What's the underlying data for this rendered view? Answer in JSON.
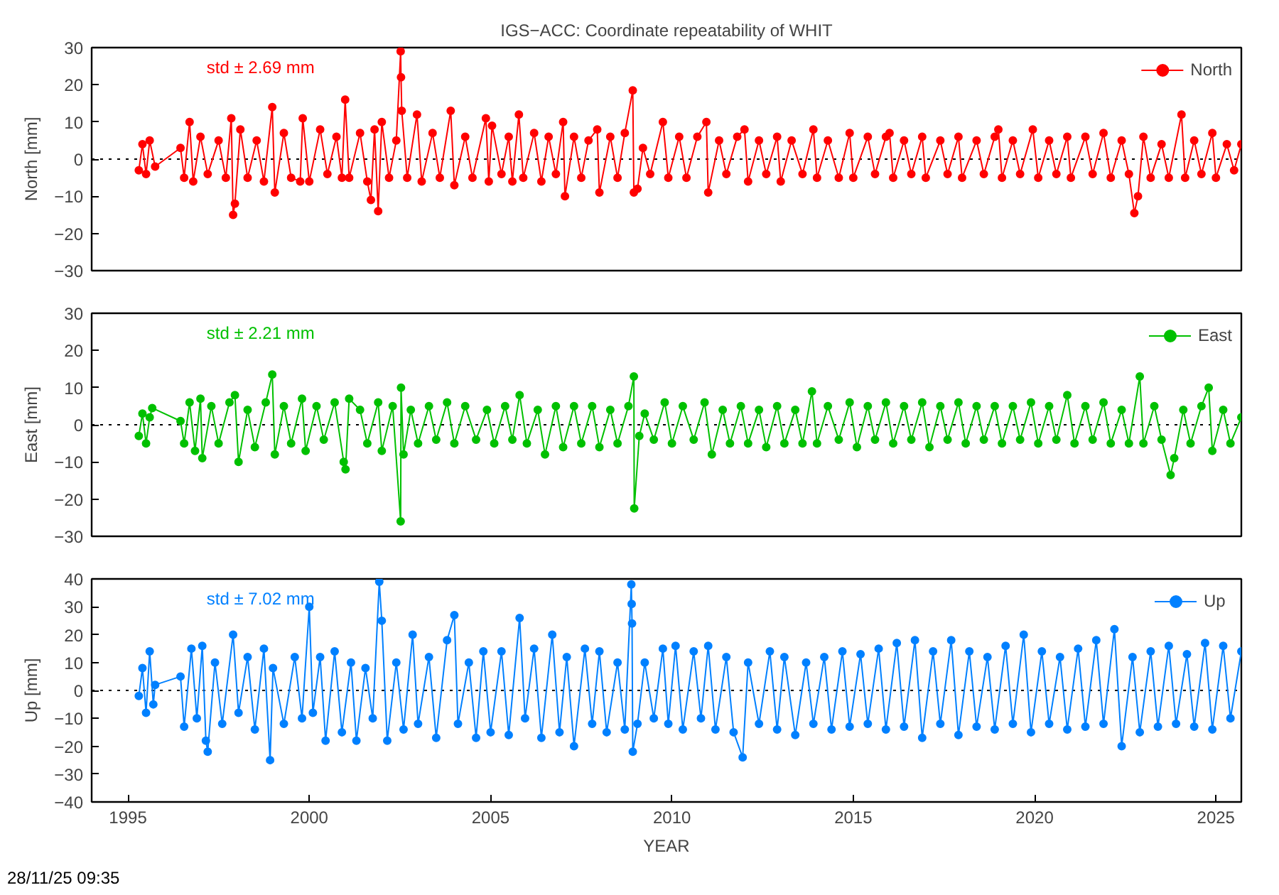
{
  "chart_data": [
    {
      "type": "line",
      "title": "IGS−ACC: Coordinate repeatability of WHIT",
      "ylabel": "North [mm]",
      "xlim": [
        1994,
        2025.7
      ],
      "ylim": [
        -30,
        30
      ],
      "yticks": [
        -30,
        -20,
        -10,
        0,
        10,
        20,
        30
      ],
      "tick_labels": "y",
      "grid": false,
      "legend": "top right",
      "marker": "circle",
      "line_style": "solid",
      "annotations": [
        "std ± 2.69 mm"
      ],
      "ref_lines": [
        {
          "axis": "y",
          "value": 0,
          "line_style": "dotted",
          "color": "#000000"
        }
      ],
      "x": [
        1995.3,
        1995.4,
        1995.5,
        1995.6,
        1995.75,
        1996.45,
        1996.55,
        1996.7,
        1996.8,
        1997.0,
        1997.2,
        1997.5,
        1997.7,
        1997.85,
        1997.9,
        1997.95,
        1998.1,
        1998.3,
        1998.55,
        1998.75,
        1998.98,
        1999.05,
        1999.3,
        1999.5,
        1999.75,
        1999.82,
        2000.0,
        2000.3,
        2000.5,
        2000.75,
        2000.9,
        2000.99,
        2001.1,
        2001.4,
        2001.6,
        2001.7,
        2001.8,
        2001.9,
        2002.0,
        2002.2,
        2002.4,
        2002.52,
        2002.53,
        2002.55,
        2002.7,
        2002.97,
        2003.1,
        2003.4,
        2003.6,
        2003.9,
        2004.0,
        2004.3,
        2004.5,
        2004.87,
        2004.95,
        2005.04,
        2005.3,
        2005.5,
        2005.6,
        2005.78,
        2005.9,
        2006.2,
        2006.4,
        2006.6,
        2006.8,
        2007.0,
        2007.05,
        2007.3,
        2007.5,
        2007.7,
        2007.94,
        2008.0,
        2008.3,
        2008.5,
        2008.7,
        2008.92,
        2008.95,
        2009.05,
        2009.2,
        2009.4,
        2009.75,
        2009.9,
        2010.2,
        2010.4,
        2010.7,
        2010.95,
        2011.0,
        2011.3,
        2011.5,
        2011.8,
        2012.0,
        2012.1,
        2012.4,
        2012.6,
        2012.9,
        2013.0,
        2013.3,
        2013.6,
        2013.9,
        2014.0,
        2014.3,
        2014.6,
        2014.9,
        2015.0,
        2015.4,
        2015.6,
        2015.9,
        2016.0,
        2016.1,
        2016.4,
        2016.6,
        2016.9,
        2017.0,
        2017.4,
        2017.6,
        2017.9,
        2018.0,
        2018.4,
        2018.6,
        2018.9,
        2019.0,
        2019.1,
        2019.4,
        2019.6,
        2019.95,
        2020.1,
        2020.4,
        2020.6,
        2020.9,
        2021.0,
        2021.4,
        2021.6,
        2021.9,
        2022.1,
        2022.4,
        2022.6,
        2022.75,
        2022.85,
        2023.0,
        2023.2,
        2023.5,
        2023.7,
        2024.05,
        2024.15,
        2024.4,
        2024.6,
        2024.9,
        2025.0,
        2025.3,
        2025.5,
        2025.7
      ],
      "series": [
        {
          "name": "North",
          "color": "#ff0000",
          "values": [
            -3,
            4,
            -4,
            5,
            -2,
            3,
            -5,
            10,
            -6,
            6,
            -4,
            5,
            -5,
            11,
            -15,
            -12,
            8,
            -5,
            5,
            -6,
            14,
            -9,
            7,
            -5,
            -6,
            11,
            -6,
            8,
            -4,
            6,
            -5,
            16,
            -5,
            7,
            -6,
            -11,
            8,
            -14,
            10,
            -5,
            5,
            29,
            22,
            13,
            -5,
            12,
            -6,
            7,
            -5,
            13,
            -7,
            6,
            -5,
            11,
            -6,
            9,
            -4,
            6,
            -6,
            12,
            -5,
            7,
            -6,
            6,
            -4,
            10,
            -10,
            6,
            -5,
            5,
            8,
            -9,
            6,
            -5,
            7,
            18.5,
            -9,
            -8,
            3,
            -4,
            10,
            -5,
            6,
            -5,
            6,
            10,
            -9,
            5,
            -4,
            6,
            8,
            -6,
            5,
            -4,
            6,
            -6,
            5,
            -4,
            8,
            -5,
            5,
            -5,
            7,
            -5,
            6,
            -4,
            6,
            7,
            -5,
            5,
            -4,
            6,
            -5,
            5,
            -4,
            6,
            -5,
            5,
            -4,
            6,
            8,
            -5,
            5,
            -4,
            8,
            -5,
            5,
            -4,
            6,
            -5,
            6,
            -4,
            7,
            -5,
            5,
            -4,
            -14.5,
            -10,
            6,
            -5,
            4,
            -5,
            12,
            -5,
            5,
            -4,
            7,
            -5,
            4,
            -3,
            4
          ]
        }
      ]
    },
    {
      "type": "line",
      "ylabel": "East [mm]",
      "xlim": [
        1994,
        2025.7
      ],
      "ylim": [
        -30,
        30
      ],
      "yticks": [
        -30,
        -20,
        -10,
        0,
        10,
        20,
        30
      ],
      "tick_labels": "y",
      "grid": false,
      "legend": "top right",
      "marker": "circle",
      "line_style": "solid",
      "annotations": [
        "std ± 2.21 mm"
      ],
      "ref_lines": [
        {
          "axis": "y",
          "value": 0,
          "line_style": "dotted",
          "color": "#000000"
        }
      ],
      "x": [
        1995.3,
        1995.4,
        1995.5,
        1995.6,
        1995.67,
        1996.45,
        1996.55,
        1996.7,
        1996.85,
        1997.0,
        1997.05,
        1997.3,
        1997.5,
        1997.8,
        1997.95,
        1998.05,
        1998.3,
        1998.5,
        1998.8,
        1998.98,
        1999.05,
        1999.3,
        1999.5,
        1999.8,
        1999.9,
        2000.2,
        2000.4,
        2000.7,
        2000.95,
        2001.0,
        2001.1,
        2001.4,
        2001.6,
        2001.9,
        2002.0,
        2002.3,
        2002.52,
        2002.53,
        2002.6,
        2002.8,
        2003.0,
        2003.3,
        2003.5,
        2003.8,
        2004.0,
        2004.3,
        2004.6,
        2004.9,
        2005.1,
        2005.4,
        2005.6,
        2005.8,
        2006.0,
        2006.3,
        2006.5,
        2006.8,
        2007.0,
        2007.3,
        2007.5,
        2007.8,
        2008.0,
        2008.3,
        2008.5,
        2008.8,
        2008.95,
        2008.96,
        2009.1,
        2009.25,
        2009.5,
        2009.8,
        2010.0,
        2010.3,
        2010.6,
        2010.9,
        2011.1,
        2011.4,
        2011.6,
        2011.9,
        2012.1,
        2012.4,
        2012.6,
        2012.9,
        2013.1,
        2013.4,
        2013.6,
        2013.86,
        2014.0,
        2014.3,
        2014.6,
        2014.9,
        2015.1,
        2015.4,
        2015.6,
        2015.9,
        2016.1,
        2016.4,
        2016.6,
        2016.9,
        2017.1,
        2017.4,
        2017.6,
        2017.9,
        2018.1,
        2018.4,
        2018.6,
        2018.9,
        2019.1,
        2019.4,
        2019.6,
        2019.9,
        2020.1,
        2020.4,
        2020.6,
        2020.9,
        2021.1,
        2021.4,
        2021.6,
        2021.9,
        2022.1,
        2022.4,
        2022.6,
        2022.9,
        2023.0,
        2023.3,
        2023.5,
        2023.75,
        2023.85,
        2024.1,
        2024.3,
        2024.6,
        2024.8,
        2024.9,
        2025.2,
        2025.4,
        2025.7
      ],
      "series": [
        {
          "name": "East",
          "color": "#00c000",
          "values": [
            -3,
            3,
            -5,
            2,
            4.5,
            1,
            -5,
            6,
            -7,
            7,
            -9,
            5,
            -5,
            6,
            8,
            -10,
            4,
            -6,
            6,
            13.5,
            -8,
            5,
            -5,
            7,
            -7,
            5,
            -4,
            6,
            -10,
            -12,
            7,
            4,
            -5,
            6,
            -7,
            5,
            -26,
            10,
            -8,
            4,
            -5,
            5,
            -4,
            6,
            -5,
            5,
            -4,
            4,
            -5,
            5,
            -4,
            8,
            -5,
            4,
            -8,
            5,
            -6,
            5,
            -5,
            5,
            -6,
            4,
            -5,
            5,
            13,
            -22.5,
            -3,
            3,
            -4,
            6,
            -5,
            5,
            -4,
            6,
            -8,
            4,
            -5,
            5,
            -5,
            4,
            -6,
            5,
            -5,
            4,
            -5,
            9,
            -5,
            5,
            -4,
            6,
            -6,
            5,
            -4,
            6,
            -5,
            5,
            -4,
            6,
            -6,
            5,
            -4,
            6,
            -5,
            5,
            -4,
            5,
            -5,
            5,
            -4,
            6,
            -5,
            5,
            -4,
            8,
            -5,
            5,
            -4,
            6,
            -5,
            4,
            -5,
            13,
            -5,
            5,
            -4,
            -13.5,
            -9,
            4,
            -5,
            5,
            10,
            -7,
            4,
            -5,
            2
          ]
        }
      ]
    },
    {
      "type": "line",
      "ylabel": "Up [mm]",
      "xlabel": "YEAR",
      "xlim": [
        1994,
        2025.7
      ],
      "xticks": [
        1995,
        2000,
        2005,
        2010,
        2015,
        2020,
        2025
      ],
      "ylim": [
        -40,
        40
      ],
      "yticks": [
        -40,
        -30,
        -20,
        -10,
        0,
        10,
        20,
        30,
        40
      ],
      "grid": false,
      "legend": "top right",
      "marker": "circle",
      "line_style": "solid",
      "annotations": [
        "std ± 7.02 mm",
        "28/11/25 09:35"
      ],
      "ref_lines": [
        {
          "axis": "y",
          "value": 0,
          "line_style": "dotted",
          "color": "#000000"
        }
      ],
      "x": [
        1995.3,
        1995.4,
        1995.5,
        1995.6,
        1995.7,
        1995.75,
        1996.45,
        1996.55,
        1996.75,
        1996.9,
        1997.05,
        1997.15,
        1997.2,
        1997.4,
        1997.6,
        1997.9,
        1998.05,
        1998.3,
        1998.5,
        1998.75,
        1998.92,
        1999.0,
        1999.3,
        1999.6,
        1999.8,
        2000.0,
        2000.1,
        2000.3,
        2000.45,
        2000.7,
        2000.9,
        2001.15,
        2001.3,
        2001.55,
        2001.75,
        2001.93,
        2002.0,
        2002.15,
        2002.4,
        2002.6,
        2002.85,
        2003.0,
        2003.3,
        2003.5,
        2003.8,
        2004.0,
        2004.1,
        2004.4,
        2004.6,
        2004.8,
        2005.0,
        2005.3,
        2005.5,
        2005.8,
        2005.95,
        2006.2,
        2006.4,
        2006.7,
        2006.9,
        2007.1,
        2007.3,
        2007.6,
        2007.8,
        2008.0,
        2008.2,
        2008.5,
        2008.7,
        2008.88,
        2008.89,
        2008.9,
        2008.92,
        2009.05,
        2009.25,
        2009.5,
        2009.75,
        2009.9,
        2010.1,
        2010.3,
        2010.6,
        2010.8,
        2011.0,
        2011.2,
        2011.5,
        2011.7,
        2011.95,
        2012.1,
        2012.4,
        2012.7,
        2012.9,
        2013.1,
        2013.4,
        2013.7,
        2013.9,
        2014.2,
        2014.4,
        2014.7,
        2014.9,
        2015.2,
        2015.4,
        2015.7,
        2015.9,
        2016.2,
        2016.4,
        2016.7,
        2016.9,
        2017.2,
        2017.4,
        2017.7,
        2017.9,
        2018.2,
        2018.4,
        2018.7,
        2018.9,
        2019.2,
        2019.4,
        2019.7,
        2019.9,
        2020.2,
        2020.4,
        2020.7,
        2020.9,
        2021.2,
        2021.4,
        2021.7,
        2021.9,
        2022.2,
        2022.4,
        2022.7,
        2022.9,
        2023.2,
        2023.4,
        2023.7,
        2023.9,
        2024.2,
        2024.4,
        2024.7,
        2024.9,
        2025.2,
        2025.4,
        2025.7
      ],
      "series": [
        {
          "name": "Up",
          "color": "#0080ff",
          "values": [
            -2,
            8,
            -8,
            14,
            -5,
            2,
            5,
            -13,
            15,
            -10,
            16,
            -18,
            -22,
            10,
            -12,
            20,
            -8,
            12,
            -14,
            15,
            -25,
            8,
            -12,
            12,
            -10,
            30,
            -8,
            12,
            -18,
            14,
            -15,
            10,
            -18,
            8,
            -10,
            39,
            25,
            -18,
            10,
            -14,
            20,
            -12,
            12,
            -17,
            18,
            27,
            -12,
            10,
            -17,
            14,
            -15,
            14,
            -16,
            26,
            -10,
            15,
            -17,
            20,
            -15,
            12,
            -20,
            15,
            -12,
            14,
            -15,
            10,
            -14,
            38,
            31,
            24,
            -22,
            -12,
            10,
            -10,
            15,
            -12,
            16,
            -14,
            14,
            -10,
            16,
            -14,
            12,
            -15,
            -24,
            10,
            -12,
            14,
            -14,
            12,
            -16,
            10,
            -12,
            12,
            -14,
            14,
            -13,
            13,
            -12,
            15,
            -14,
            17,
            -13,
            18,
            -17,
            14,
            -12,
            18,
            -16,
            14,
            -13,
            12,
            -14,
            16,
            -12,
            20,
            -15,
            14,
            -12,
            12,
            -14,
            15,
            -13,
            18,
            -12,
            22,
            -20,
            12,
            -15,
            14,
            -13,
            16,
            -12,
            13,
            -13,
            17,
            -14,
            16,
            -10,
            14
          ]
        }
      ]
    }
  ]
}
